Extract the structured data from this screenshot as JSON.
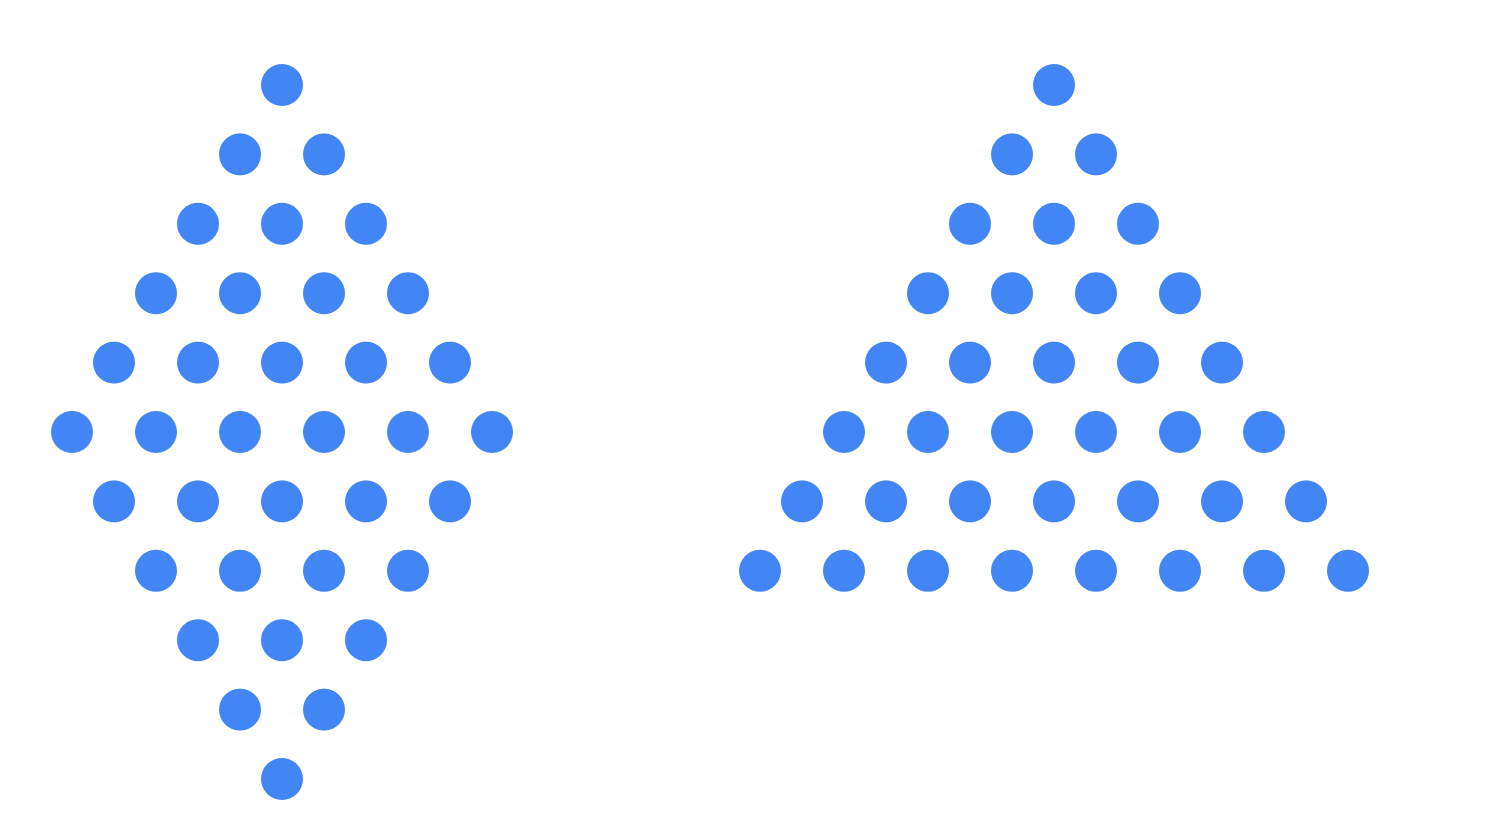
{
  "colors": {
    "background": "#ffffff",
    "dot": "#4285F4"
  },
  "figures": [
    {
      "shape": "diamond",
      "row_counts": [
        1,
        2,
        3,
        4,
        5,
        6,
        5,
        4,
        3,
        2,
        1
      ],
      "total_dots": 36
    },
    {
      "shape": "triangle",
      "row_counts": [
        1,
        2,
        3,
        4,
        5,
        6,
        7,
        8
      ],
      "total_dots": 36
    }
  ]
}
